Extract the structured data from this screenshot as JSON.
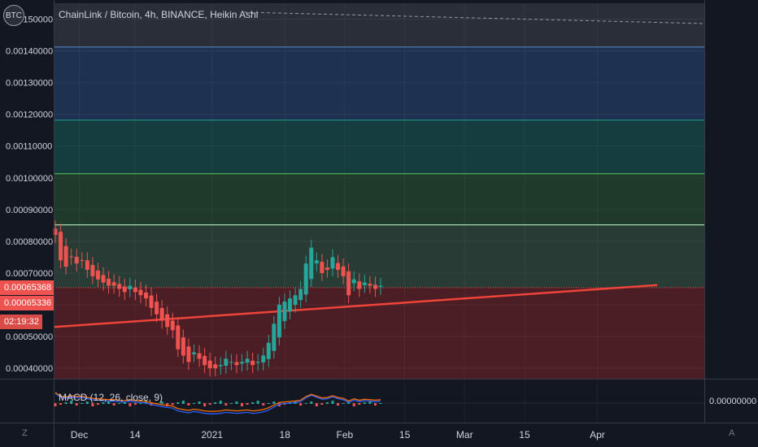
{
  "header": {
    "symbol_badge": "BTC",
    "title": "ChainLink / Bitcoin, 4h, BINANCE, Heikin Ashi"
  },
  "price_tags": {
    "current_price": "0.00065368",
    "trendline_price": "0.00065336",
    "countdown": "02:19:32"
  },
  "macd": {
    "label": "MACD (12, 26, close, 9)",
    "value": "0.00000000"
  },
  "footer": {
    "timezone_button": "Z",
    "auto_button": "A"
  },
  "colors": {
    "background": "#131722",
    "up": "#26a69a",
    "down": "#ef5350",
    "trendline": "#f0433a"
  },
  "chart_data": {
    "type": "candlestick",
    "title": "ChainLink / Bitcoin, 4h, BINANCE, Heikin Ashi",
    "y_ticks": [
      "0.00150000",
      "0.00140000",
      "0.00130000",
      "0.00120000",
      "0.00110000",
      "0.00100000",
      "0.00090000",
      "0.00080000",
      "0.00070000",
      "0.00050000",
      "0.00040000"
    ],
    "x_ticks": [
      "Dec",
      "14",
      "2021",
      "18",
      "Feb",
      "15",
      "Mar",
      "15",
      "Apr"
    ],
    "ylim": [
      0.000367,
      0.00155
    ],
    "horizontal_levels": [
      {
        "value": 0.001412,
        "color": "#4f7cac"
      },
      {
        "value": 0.001182,
        "color": "#1e8a7d"
      },
      {
        "value": 0.001013,
        "color": "#4caf50"
      },
      {
        "value": 0.000852,
        "color": "#a5d6a7"
      },
      {
        "value": 0.000654,
        "color": "#ef5350"
      }
    ],
    "zones": [
      {
        "from": 0.001412,
        "to": 0.00155,
        "color": "#2a2e39"
      },
      {
        "from": 0.001182,
        "to": 0.001412,
        "color": "#1e3150"
      },
      {
        "from": 0.001013,
        "to": 0.001182,
        "color": "#153c3e"
      },
      {
        "from": 0.000852,
        "to": 0.001013,
        "color": "#1f3a2a"
      },
      {
        "from": 0.000654,
        "to": 0.000852,
        "color": "#283b34"
      },
      {
        "from": 0.000367,
        "to": 0.000654,
        "color": "#4a1e24"
      }
    ],
    "trendline": {
      "start": [
        "Nov 25",
        0.00053
      ],
      "end": [
        "Apr 15",
        0.000662
      ]
    },
    "price_close": [
      0.00082,
      0.00074,
      0.00072,
      0.00075,
      0.00073,
      0.00074,
      0.00071,
      0.00069,
      0.00068,
      0.00067,
      0.00066,
      0.00066,
      0.00065,
      0.00064,
      0.00066,
      0.00064,
      0.00063,
      0.00062,
      0.00059,
      0.00057,
      0.00055,
      0.00053,
      0.00052,
      0.00046,
      0.00044,
      0.00042,
      0.00045,
      0.00043,
      0.00041,
      0.0004,
      0.0004,
      0.00041,
      0.00043,
      0.00042,
      0.00041,
      0.00042,
      0.00043,
      0.00041,
      0.00042,
      0.00044,
      0.00048,
      0.00054,
      0.0006,
      0.00061,
      0.00062,
      0.00063,
      0.00065,
      0.00073,
      0.00078,
      0.00074,
      0.0007,
      0.00071,
      0.00075,
      0.00071,
      0.00069,
      0.00063,
      0.00068,
      0.00065,
      0.00067,
      0.00066,
      0.00065,
      0.00066
    ]
  }
}
